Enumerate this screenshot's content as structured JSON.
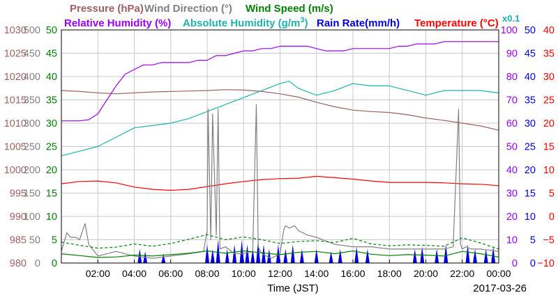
{
  "chart_data": {
    "type": "line",
    "date": "2017-03-26",
    "xlabel": "Time (JST)",
    "x_ticks": [
      "02:00",
      "04:00",
      "06:00",
      "08:00",
      "10:00",
      "12:00",
      "14:00",
      "16:00",
      "18:00",
      "20:00",
      "22:00",
      "00:00"
    ],
    "x_range_hours": [
      0,
      24
    ],
    "grid": true,
    "legend": [
      {
        "key": "pressure",
        "label": "Pressure (hPa)",
        "color": "#a06060"
      },
      {
        "key": "wind_dir",
        "label": "Wind Direction (°)",
        "color": "#808080"
      },
      {
        "key": "wind_speed",
        "label": "Wind Speed (m/s)",
        "color": "#008000"
      },
      {
        "key": "rh",
        "label": "Relative Humidity (%)",
        "color": "#9900ee"
      },
      {
        "key": "ah",
        "label": "Absolute Humidity (g/m",
        "label_sup": "3",
        "label_end": ")",
        "color": "#20b0b0"
      },
      {
        "key": "rain",
        "label": "Rain Rate(mm/h)",
        "color": "#0000dd"
      },
      {
        "key": "temp",
        "label": "Temperature (°C)",
        "color": "#ff0000"
      }
    ],
    "ah_scale_note": "x0.1",
    "axes": {
      "pressure": {
        "min": 980,
        "max": 1030,
        "step": 5,
        "color": "#a06060",
        "labels": [
          "980",
          "985",
          "990",
          "995",
          "1000",
          "1005",
          "1010",
          "1015",
          "1020",
          "1025",
          "1030"
        ]
      },
      "wind_dir": {
        "min": 0,
        "max": 500,
        "step": 50,
        "color": "#808080",
        "labels": [
          "0",
          "50",
          "100",
          "150",
          "200",
          "250",
          "300",
          "350",
          "400",
          "450",
          "500"
        ]
      },
      "wind_speed": {
        "min": 0,
        "max": 50,
        "step": 5,
        "color": "#008000",
        "labels": [
          "0",
          "5",
          "10",
          "15",
          "20",
          "25",
          "30",
          "35",
          "40",
          "45",
          "50"
        ]
      },
      "rh": {
        "min": 0,
        "max": 100,
        "step": 10,
        "color": "#9900ee",
        "labels": [
          "0",
          "10",
          "20",
          "30",
          "40",
          "50",
          "60",
          "70",
          "80",
          "90",
          "100"
        ]
      },
      "rain": {
        "min": 0,
        "max": 50,
        "step": 5,
        "color": "#0000dd",
        "labels": [
          "0",
          "5",
          "10",
          "15",
          "20",
          "25",
          "30",
          "35",
          "40",
          "45",
          "50"
        ]
      },
      "temp": {
        "min": -10,
        "max": 40,
        "step": 5,
        "color": "#ff0000",
        "labels": [
          "−10",
          "−5",
          "0",
          "5",
          "10",
          "15",
          "20",
          "25",
          "30",
          "35",
          "40"
        ]
      }
    },
    "series": [
      {
        "key": "pressure",
        "name": "Pressure (hPa)",
        "axis": "pressure",
        "color": "#a06060",
        "x": [
          0,
          1,
          2,
          3,
          4,
          5,
          6,
          7,
          8,
          9,
          10,
          11,
          12,
          13,
          14,
          15,
          16,
          17,
          18,
          19,
          20,
          21,
          22,
          23,
          24
        ],
        "y": [
          1017,
          1016.8,
          1016.5,
          1016.3,
          1016.5,
          1016.7,
          1016.8,
          1016.9,
          1017,
          1017.2,
          1017.1,
          1016.8,
          1016.3,
          1015.6,
          1014.5,
          1013.5,
          1012.8,
          1012.5,
          1012.3,
          1011.8,
          1011.1,
          1010.6,
          1010,
          1009.4,
          1008.5
        ]
      },
      {
        "key": "rh",
        "name": "Relative Humidity (%)",
        "axis": "rh",
        "color": "#9900ee",
        "x": [
          0,
          0.5,
          1,
          1.5,
          2,
          2.5,
          3,
          3.5,
          4,
          4.5,
          5,
          5.5,
          6,
          6.5,
          7,
          7.5,
          8,
          8.5,
          9,
          9.5,
          10,
          10.5,
          11,
          11.5,
          12,
          12.5,
          13,
          13.5,
          14,
          14.5,
          15,
          15.5,
          16,
          16.5,
          17,
          17.5,
          18,
          18.5,
          19,
          19.5,
          20,
          20.5,
          21,
          22,
          23,
          24
        ],
        "y": [
          61,
          61,
          61,
          61.5,
          64,
          70,
          76,
          81,
          83,
          85,
          85,
          86,
          86,
          86,
          86,
          87,
          87,
          89,
          89,
          90,
          91,
          91,
          92,
          92,
          93,
          93,
          93,
          93,
          92,
          91,
          91,
          91,
          92,
          92,
          92,
          92,
          92,
          93,
          93,
          94,
          94,
          94,
          95,
          95,
          95,
          95
        ]
      },
      {
        "key": "ah",
        "name": "Absolute Humidity (x0.1 g/m3)",
        "axis": "rh",
        "color": "#20b0b0",
        "x": [
          0,
          1,
          2,
          3,
          4,
          5,
          6,
          7,
          8,
          9,
          10,
          11,
          12,
          12.5,
          13,
          14,
          15,
          16,
          17,
          18,
          19,
          20,
          21,
          22,
          23,
          24
        ],
        "y": [
          46,
          48,
          50,
          54,
          58,
          59,
          60,
          62,
          65,
          68,
          71,
          74,
          77,
          78,
          75,
          72,
          74,
          77,
          76,
          76,
          74,
          72,
          74,
          74,
          74,
          73
        ]
      },
      {
        "key": "temp",
        "name": "Temperature (°C)",
        "axis": "temp",
        "color": "#ff0000",
        "x": [
          0,
          1,
          2,
          3,
          4,
          5,
          6,
          7,
          8,
          9,
          10,
          11,
          12,
          13,
          14,
          15,
          16,
          17,
          18,
          19,
          20,
          21,
          22,
          23,
          24
        ],
        "y": [
          7,
          7.5,
          7.6,
          7.2,
          6.3,
          5.8,
          5.6,
          5.8,
          6.4,
          7,
          7.5,
          7.9,
          8.1,
          8.2,
          8.6,
          8.3,
          8.0,
          7.6,
          7.3,
          7.3,
          7.3,
          7.2,
          7.0,
          6.9,
          6.6
        ]
      },
      {
        "key": "wind_dir",
        "name": "Wind Direction (°)",
        "axis": "wind_dir",
        "color": "#808080",
        "x": [
          0,
          0.3,
          0.5,
          0.8,
          1,
          1.3,
          1.5,
          2,
          3,
          4,
          5,
          6,
          7,
          7.8,
          8,
          8.05,
          8.2,
          8.3,
          8.5,
          8.6,
          8.7,
          9,
          9.5,
          10,
          10.5,
          10.7,
          10.8,
          11,
          11.5,
          12,
          12.2,
          12.3,
          12.5,
          12.8,
          13,
          13.5,
          14,
          15,
          16,
          17,
          18,
          19,
          20,
          21,
          21.5,
          21.8,
          21.9,
          22,
          22.2,
          22.5,
          23,
          24
        ],
        "y": [
          25,
          65,
          55,
          55,
          50,
          85,
          40,
          15,
          25,
          15,
          10,
          15,
          20,
          25,
          70,
          330,
          50,
          320,
          60,
          330,
          30,
          35,
          20,
          20,
          25,
          340,
          35,
          20,
          10,
          20,
          70,
          80,
          75,
          80,
          70,
          60,
          55,
          40,
          35,
          35,
          30,
          30,
          30,
          30,
          35,
          330,
          40,
          30,
          35,
          30,
          30,
          25
        ]
      },
      {
        "key": "wind_speed",
        "name": "Wind Speed (m/s)",
        "axis": "wind_speed",
        "color": "#008000",
        "x": [
          0,
          1,
          2,
          3,
          4,
          5,
          6,
          7,
          8,
          9,
          10,
          11,
          12,
          13,
          14,
          15,
          16,
          17,
          18,
          19,
          20,
          21,
          22,
          23,
          24
        ],
        "y": [
          2,
          1.6,
          1.2,
          1.3,
          1.7,
          1.5,
          1.8,
          2.1,
          2.6,
          2.1,
          2.6,
          2.2,
          1.8,
          2.3,
          2.5,
          2.0,
          2.6,
          1.9,
          1.6,
          1.8,
          1.7,
          1.5,
          2.5,
          2.0,
          1.3
        ]
      },
      {
        "key": "wind_gust",
        "name": "Wind Speed gust (m/s)",
        "axis": "wind_speed",
        "color": "#008000",
        "dashed": true,
        "x": [
          0,
          1,
          2,
          3,
          4,
          5,
          6,
          7,
          8,
          9,
          10,
          11,
          12,
          13,
          14,
          15,
          16,
          17,
          18,
          19,
          20,
          21,
          22,
          23,
          24
        ],
        "y": [
          4.5,
          3.8,
          3.2,
          3.4,
          4.1,
          3.6,
          4.2,
          5.1,
          6.1,
          5.0,
          5.6,
          5.0,
          4.2,
          4.6,
          4.8,
          4.4,
          5.3,
          4.1,
          3.7,
          3.9,
          3.8,
          3.6,
          5.4,
          4.3,
          3.0
        ]
      }
    ],
    "rain_events": {
      "axis": "rain",
      "color": "#0000dd",
      "x": [
        4.3,
        4.6,
        5.6,
        8.0,
        8.3,
        8.6,
        9.1,
        9.5,
        9.9,
        10.2,
        10.5,
        10.8,
        11.1,
        11.4,
        11.9,
        12.3,
        12.7,
        13.2,
        14.0,
        14.8,
        15.3,
        16.2,
        16.8,
        19.4,
        19.8,
        20.6,
        21.1,
        22.3,
        22.7,
        23.3,
        23.7
      ],
      "y": [
        3,
        2.5,
        2,
        4,
        3,
        5,
        3,
        4,
        5,
        4,
        3,
        5,
        4,
        3,
        4,
        3,
        4,
        3,
        3,
        2.5,
        3,
        3.5,
        3,
        3,
        3.5,
        3,
        4,
        4,
        3,
        3,
        3.5
      ]
    }
  }
}
